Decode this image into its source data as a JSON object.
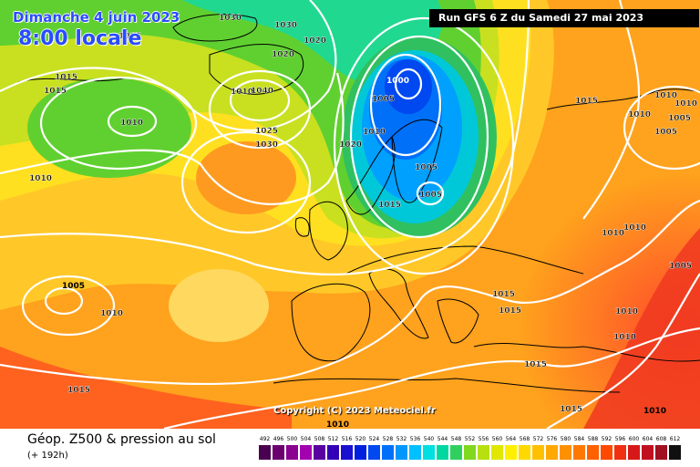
{
  "header": {
    "date": "Dimanche 4 juin 2023",
    "time": "8:00 locale",
    "run": "Run GFS 6 Z du Samedi 27 mai 2023"
  },
  "footer": {
    "copyright": "Copyright (C) 2023 Meteociel.fr",
    "title": "Géop. Z500 & pression au sol",
    "subtitle": "(+ 192h)"
  },
  "isobar_labels": [
    "1030",
    "1030",
    "1015",
    "1020",
    "1015",
    "1015",
    "1010",
    "1010",
    "1040",
    "1020",
    "1030",
    "1025",
    "1030",
    "1005",
    "1000",
    "1010",
    "1020",
    "1005",
    "1005",
    "1015",
    "1010",
    "1015",
    "1015",
    "1015",
    "1015",
    "1010",
    "1005",
    "1010",
    "1010",
    "1005",
    "1010",
    "1010",
    "1015",
    "1005",
    "1010",
    "1015",
    "1015",
    "1010",
    "1015",
    "1010"
  ],
  "legend_scale": {
    "labels": [
      "492",
      "496",
      "500",
      "504",
      "508",
      "512",
      "516",
      "520",
      "524",
      "528",
      "532",
      "536",
      "540",
      "544",
      "548",
      "552",
      "556",
      "560",
      "564",
      "568",
      "572",
      "576",
      "580",
      "584",
      "588",
      "592",
      "596",
      "600",
      "604",
      "608",
      "612"
    ],
    "colors": [
      "#4a0050",
      "#6a006e",
      "#8a0090",
      "#a300b0",
      "#5a00a0",
      "#3300b8",
      "#1a10d0",
      "#0020e0",
      "#0048f0",
      "#0070f8",
      "#0098ff",
      "#00c0ff",
      "#00e0e0",
      "#00d8a0",
      "#30d060",
      "#80d820",
      "#b8e010",
      "#e0e800",
      "#fff000",
      "#ffd800",
      "#ffc000",
      "#ffa800",
      "#ff9000",
      "#ff7800",
      "#ff6000",
      "#ff4800",
      "#f03010",
      "#d81818",
      "#c01020",
      "#a01020",
      "#101010"
    ]
  }
}
